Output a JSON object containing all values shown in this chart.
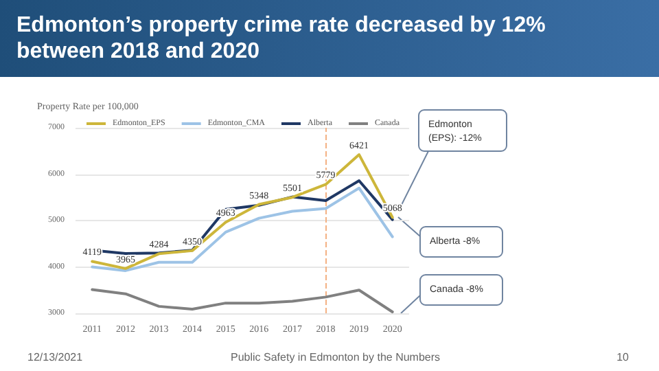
{
  "chart_data": {
    "type": "line",
    "title": "Edmonton’s property crime rate decreased by 12% between 2018 and 2020",
    "ylabel": "Property Rate per 100,000",
    "categories": [
      "2011",
      "2012",
      "2013",
      "2014",
      "2015",
      "2016",
      "2017",
      "2018",
      "2019",
      "2020"
    ],
    "series": [
      {
        "name": "Edmonton_EPS",
        "color": "#cdb63a",
        "values": [
          4119,
          3965,
          4284,
          4350,
          4963,
          5348,
          5501,
          5779,
          6421,
          5068
        ],
        "value_labels": [
          "4119",
          "3965",
          "4284",
          "4350",
          "4963",
          "5348",
          "5501",
          "5779",
          "6421",
          "5068"
        ]
      },
      {
        "name": "Edmonton_CMA",
        "color": "#9dc3e6",
        "values": [
          4000,
          3920,
          4100,
          4100,
          4750,
          5050,
          5200,
          5260,
          5700,
          4650
        ]
      },
      {
        "name": "Alberta",
        "color": "#1f3864",
        "values": [
          4360,
          4290,
          4300,
          4360,
          5240,
          5330,
          5510,
          5430,
          5860,
          5020
        ]
      },
      {
        "name": "Canada",
        "color": "#808080",
        "values": [
          3510,
          3420,
          3150,
          3090,
          3220,
          3220,
          3260,
          3350,
          3500,
          3030
        ]
      }
    ],
    "ylim": [
      3000,
      7000
    ],
    "yticks": [
      3000,
      4000,
      5000,
      6000,
      7000
    ],
    "grid": "y",
    "legend": "top",
    "marker": "none",
    "line_style": "solid",
    "ref_lines": [
      {
        "axis": "x",
        "value": "2018",
        "color": "#f4b183",
        "line_style": "dashed"
      }
    ],
    "annotations": [
      "Edmonton (EPS): -12%",
      "Alberta -8%",
      "Canada -8%",
      "12/13/2021",
      "Public Safety in Edmonton by the Numbers",
      "10"
    ]
  }
}
